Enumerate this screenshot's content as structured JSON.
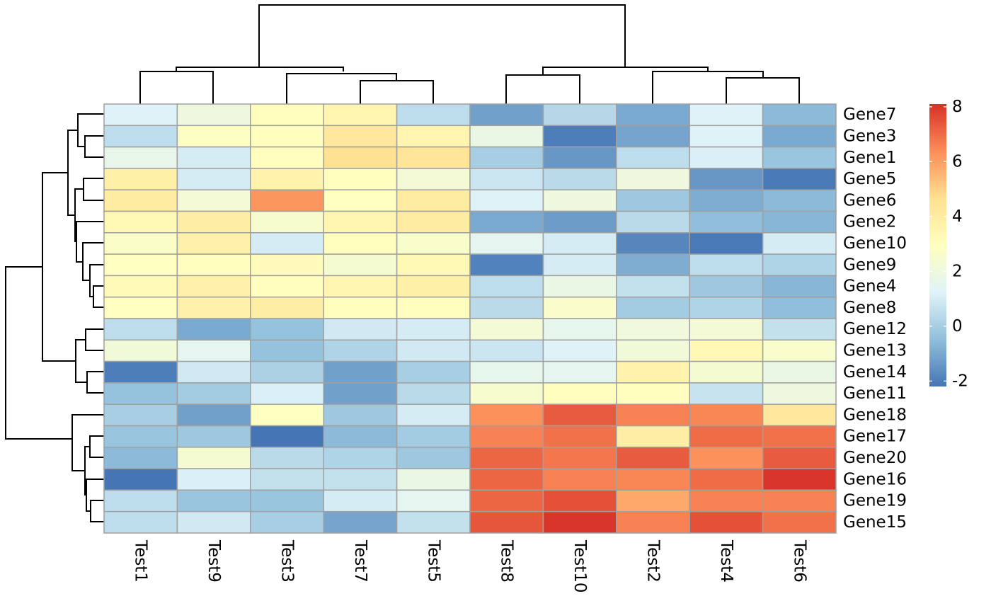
{
  "chart_data": {
    "type": "heatmap",
    "columns": [
      "Test1",
      "Test9",
      "Test3",
      "Test7",
      "Test5",
      "Test8",
      "Test10",
      "Test2",
      "Test4",
      "Test6"
    ],
    "rows": [
      "Gene7",
      "Gene3",
      "Gene1",
      "Gene5",
      "Gene6",
      "Gene2",
      "Gene10",
      "Gene9",
      "Gene4",
      "Gene8",
      "Gene12",
      "Gene13",
      "Gene14",
      "Gene11",
      "Gene18",
      "Gene17",
      "Gene20",
      "Gene16",
      "Gene19",
      "Gene15"
    ],
    "values": [
      [
        1.2,
        2.0,
        3.0,
        3.5,
        0.5,
        -1.2,
        0.3,
        -1.0,
        1.2,
        -0.6
      ],
      [
        0.5,
        2.8,
        3.0,
        4.2,
        3.5,
        1.8,
        -2.0,
        -1.1,
        1.2,
        -1.0
      ],
      [
        1.7,
        1.0,
        3.0,
        4.6,
        4.4,
        0.0,
        -1.4,
        0.5,
        1.1,
        -0.3
      ],
      [
        3.8,
        1.0,
        3.6,
        3.0,
        2.3,
        0.8,
        0.4,
        2.0,
        -1.4,
        -2.1
      ],
      [
        4.0,
        2.3,
        6.2,
        2.9,
        4.0,
        1.2,
        2.0,
        -0.2,
        -0.9,
        -0.6
      ],
      [
        3.3,
        3.9,
        2.5,
        3.5,
        4.0,
        -1.0,
        -1.3,
        0.4,
        -0.5,
        -0.7
      ],
      [
        2.7,
        3.7,
        1.0,
        3.0,
        2.6,
        1.5,
        1.0,
        -1.8,
        -2.1,
        1.0
      ],
      [
        2.9,
        3.0,
        3.1,
        2.4,
        3.3,
        -1.9,
        1.0,
        -0.9,
        0.5,
        0.2
      ],
      [
        3.2,
        3.7,
        3.0,
        3.5,
        3.8,
        0.5,
        1.8,
        0.6,
        -0.2,
        -0.7
      ],
      [
        2.9,
        3.7,
        3.9,
        3.0,
        3.0,
        0.4,
        2.6,
        -0.1,
        0.2,
        -0.5
      ],
      [
        0.5,
        -1.0,
        -0.4,
        0.9,
        1.0,
        2.3,
        1.6,
        2.1,
        2.3,
        0.6
      ],
      [
        2.2,
        1.5,
        -0.4,
        0.2,
        0.9,
        0.8,
        1.2,
        2.2,
        3.3,
        2.6
      ],
      [
        -2.0,
        0.9,
        0.1,
        -1.2,
        0.0,
        1.6,
        1.5,
        3.6,
        2.4,
        1.8
      ],
      [
        -0.4,
        -0.1,
        1.1,
        -1.2,
        0.4,
        2.5,
        3.0,
        3.0,
        0.7,
        2.0
      ],
      [
        0.0,
        -1.2,
        2.9,
        -0.2,
        1.0,
        6.3,
        7.3,
        6.6,
        6.5,
        4.2
      ],
      [
        -0.3,
        -0.2,
        -2.3,
        -0.6,
        -0.1,
        6.6,
        6.9,
        3.9,
        7.0,
        6.9
      ],
      [
        -0.6,
        2.4,
        0.4,
        0.2,
        -0.2,
        7.1,
        6.8,
        7.3,
        6.3,
        7.3
      ],
      [
        -2.2,
        1.1,
        0.6,
        0.6,
        1.8,
        7.1,
        6.6,
        6.5,
        7.0,
        8.0
      ],
      [
        0.5,
        -0.3,
        -0.3,
        1.0,
        1.5,
        7.1,
        7.5,
        5.8,
        6.6,
        6.6
      ],
      [
        0.5,
        0.9,
        0.0,
        -1.1,
        0.6,
        7.4,
        8.0,
        6.6,
        7.5,
        6.9
      ]
    ],
    "legend": {
      "ticks": [
        "8",
        "6",
        "4",
        "2",
        "0",
        "-2"
      ],
      "tick_values": [
        8,
        6,
        4,
        2,
        0,
        -2
      ],
      "min": -2.2,
      "max": 8.1,
      "colors": [
        "#4575B4",
        "#91BFDB",
        "#E0F3F8",
        "#FFFFBF",
        "#FEE090",
        "#FC8D59",
        "#D73027"
      ]
    },
    "column_dendrogram": true,
    "row_dendrogram": true,
    "grid": true,
    "cell_border_color": "#A0A0A0"
  }
}
